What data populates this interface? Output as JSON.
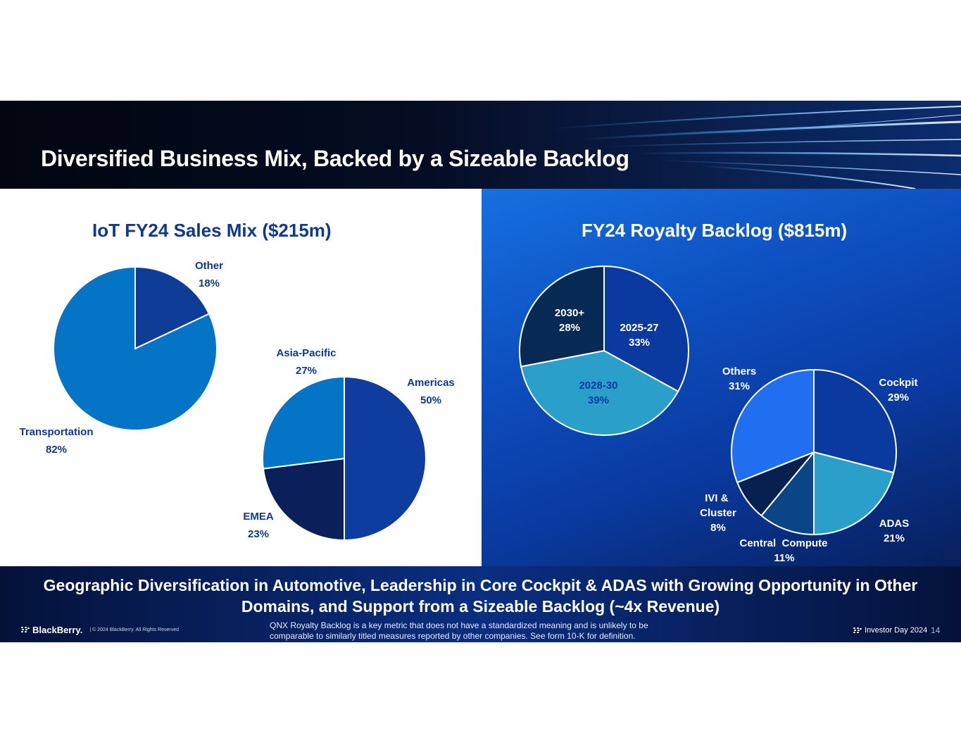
{
  "header": {
    "title": "Diversified Business Mix, Backed by a Sizeable Backlog"
  },
  "chart_data": [
    {
      "type": "pie",
      "title": "IoT FY24 Sales Mix ($215m)",
      "slices": [
        {
          "name": "Other",
          "value": 18,
          "label": "18%",
          "color": "#0e3c96"
        },
        {
          "name": "Transportation",
          "value": 82,
          "label": "82%",
          "color": "#0474c7"
        }
      ]
    },
    {
      "type": "pie",
      "title": "",
      "slices": [
        {
          "name": "Americas",
          "value": 50,
          "label": "50%",
          "color": "#0e3c9f"
        },
        {
          "name": "EMEA",
          "value": 23,
          "label": "23%",
          "color": "#0b1f5a"
        },
        {
          "name": "Asia-Pacific",
          "value": 27,
          "label": "27%",
          "color": "#0474c7"
        }
      ]
    },
    {
      "type": "pie",
      "title": "FY24 Royalty Backlog ($815m)",
      "slices": [
        {
          "name": "2025-27",
          "value": 33,
          "label": "33%",
          "color": "#0a3aa0"
        },
        {
          "name": "2028-30",
          "value": 39,
          "label": "39%",
          "color": "#2a9fc9"
        },
        {
          "name": "2030+",
          "value": 28,
          "label": "28%",
          "color": "#072a55"
        }
      ]
    },
    {
      "type": "pie",
      "title": "",
      "slices": [
        {
          "name": "Cockpit",
          "value": 29,
          "label": "29%",
          "color": "#0a3aa0"
        },
        {
          "name": "ADAS",
          "value": 21,
          "label": "21%",
          "color": "#2a9fc9"
        },
        {
          "name": "Central  Compute",
          "value": 11,
          "label": "11%",
          "color": "#0a4585"
        },
        {
          "name": "IVI & Cluster",
          "value": 8,
          "label": "8%",
          "color": "#06204f"
        },
        {
          "name": "Others",
          "value": 31,
          "label": "31%",
          "color": "#1f6ff0"
        }
      ]
    }
  ],
  "footer": {
    "tagline_line1": "Geographic Diversification in Automotive, Leadership in Core Cockpit & ADAS with Growing Opportunity in Other",
    "tagline_line2": "Domains, and Support from a Sizeable Backlog (~4x Revenue)",
    "brand": "BlackBerry.",
    "copyright": "|  © 2024 BlackBerry.  All Rights Reserved",
    "disclaimer": "QNX Royalty Backlog is a key metric that does not have a standardized meaning and is unlikely to be comparable to similarly titled measures reported by other companies. See form 10-K for definition.",
    "event": "Investor Day 2024",
    "page": "14"
  }
}
